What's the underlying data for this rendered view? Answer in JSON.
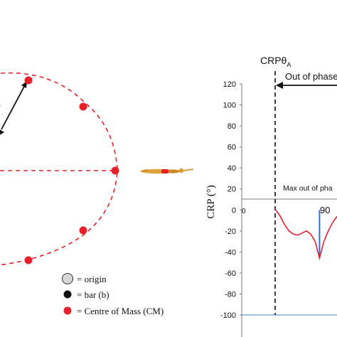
{
  "diagram": {
    "legend": [
      {
        "symbol": "origin",
        "text": "= origin"
      },
      {
        "symbol": "bar",
        "text": "= bar (b)"
      },
      {
        "symbol": "cm",
        "text": "= Centre of Mass (CM)"
      }
    ],
    "colors": {
      "cm": "#e8202a",
      "bar": "#111111",
      "origin": "#d6d6d6"
    },
    "swimmer_icon": "swimmer-figure"
  },
  "plot": {
    "annotation_top": "CRPθ",
    "annotation_sub": "A",
    "out_of_phase_label": "Out of phase",
    "max_out_label": "Max out of pha",
    "value_label": "90",
    "zero_axis_mark": "0"
  },
  "chart_data": {
    "type": "line",
    "ylabel": "CRP (°)",
    "ylim": [
      -100,
      120
    ],
    "yticks": [
      120,
      100,
      80,
      60,
      40,
      20,
      0,
      -20,
      -40,
      -60,
      -80,
      -100
    ],
    "line_color": "#e8202a",
    "marker_color": "#2f6fd6",
    "series": [
      {
        "values": [
          0,
          -6,
          -14,
          -20,
          -23,
          -24,
          -22,
          -20,
          -23,
          -30,
          -46,
          -30,
          -20,
          -12,
          -6
        ]
      }
    ],
    "marker_value": -46
  }
}
